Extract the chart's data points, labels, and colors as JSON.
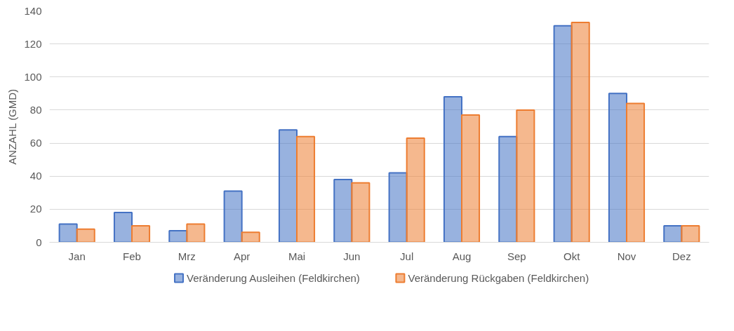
{
  "chart_data": {
    "type": "bar",
    "ylabel": "ANZAHL (GMD)",
    "categories": [
      "Jan",
      "Feb",
      "Mrz",
      "Apr",
      "Mai",
      "Jun",
      "Jul",
      "Aug",
      "Sep",
      "Okt",
      "Nov",
      "Dez"
    ],
    "series": [
      {
        "name": "Veränderung Ausleihen (Feldkirchen)",
        "color": "#4472c4",
        "values": [
          11,
          18,
          7,
          31,
          68,
          38,
          42,
          88,
          64,
          131,
          90,
          10
        ]
      },
      {
        "name": "Veränderung Rückgaben (Feldkirchen)",
        "color": "#ed7d31",
        "values": [
          8,
          10,
          11,
          6,
          64,
          36,
          63,
          77,
          80,
          133,
          84,
          10
        ]
      }
    ],
    "ylim": [
      0,
      140
    ],
    "yticks": [
      0,
      20,
      40,
      60,
      80,
      100,
      120,
      140
    ],
    "grid": "y",
    "legend": "bottom"
  }
}
